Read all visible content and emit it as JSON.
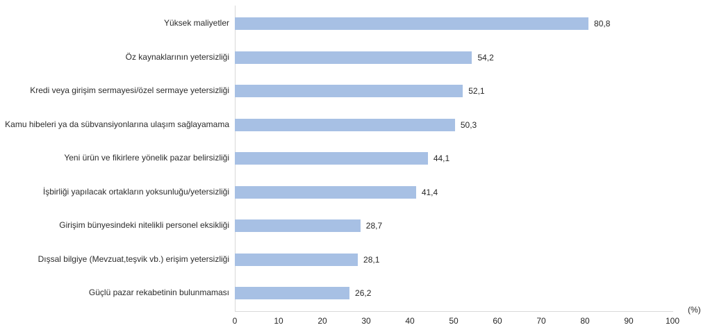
{
  "chart_data": {
    "type": "bar",
    "orientation": "horizontal",
    "title": "",
    "xlabel": "",
    "ylabel": "",
    "axis_unit_label": "(%)",
    "xlim": [
      0,
      100
    ],
    "x_ticks": [
      "0",
      "10",
      "20",
      "30",
      "40",
      "50",
      "60",
      "70",
      "80",
      "90",
      "100"
    ],
    "grid": false,
    "legend": false,
    "bar_color": "#a7c0e4",
    "axis_line_color": "#d9d9d9",
    "text_color": "#262626",
    "categories": [
      "Yüksek maliyetler",
      "Öz kaynaklarının yetersizliği",
      "Kredi veya girişim sermayesi/özel sermaye yetersizliği",
      "Kamu hibeleri ya da sübvansiyonlarına ulaşım sağlayamama",
      "Yeni ürün ve fikirlere yönelik pazar belirsizliği",
      "İşbirliği yapılacak ortakların yoksunluğu/yetersizliği",
      "Girişim bünyesindeki nitelikli personel eksikliği",
      "Dışsal bilgiye (Mevzuat,teşvik vb.) erişim yetersizliği",
      "Güçlü pazar rekabetinin bulunmaması"
    ],
    "values": [
      80.8,
      54.2,
      52.1,
      50.3,
      44.1,
      41.4,
      28.7,
      28.1,
      26.2
    ],
    "value_labels": [
      "80,8",
      "54,2",
      "52,1",
      "50,3",
      "44,1",
      "41,4",
      "28,7",
      "28,1",
      "26,2"
    ]
  }
}
